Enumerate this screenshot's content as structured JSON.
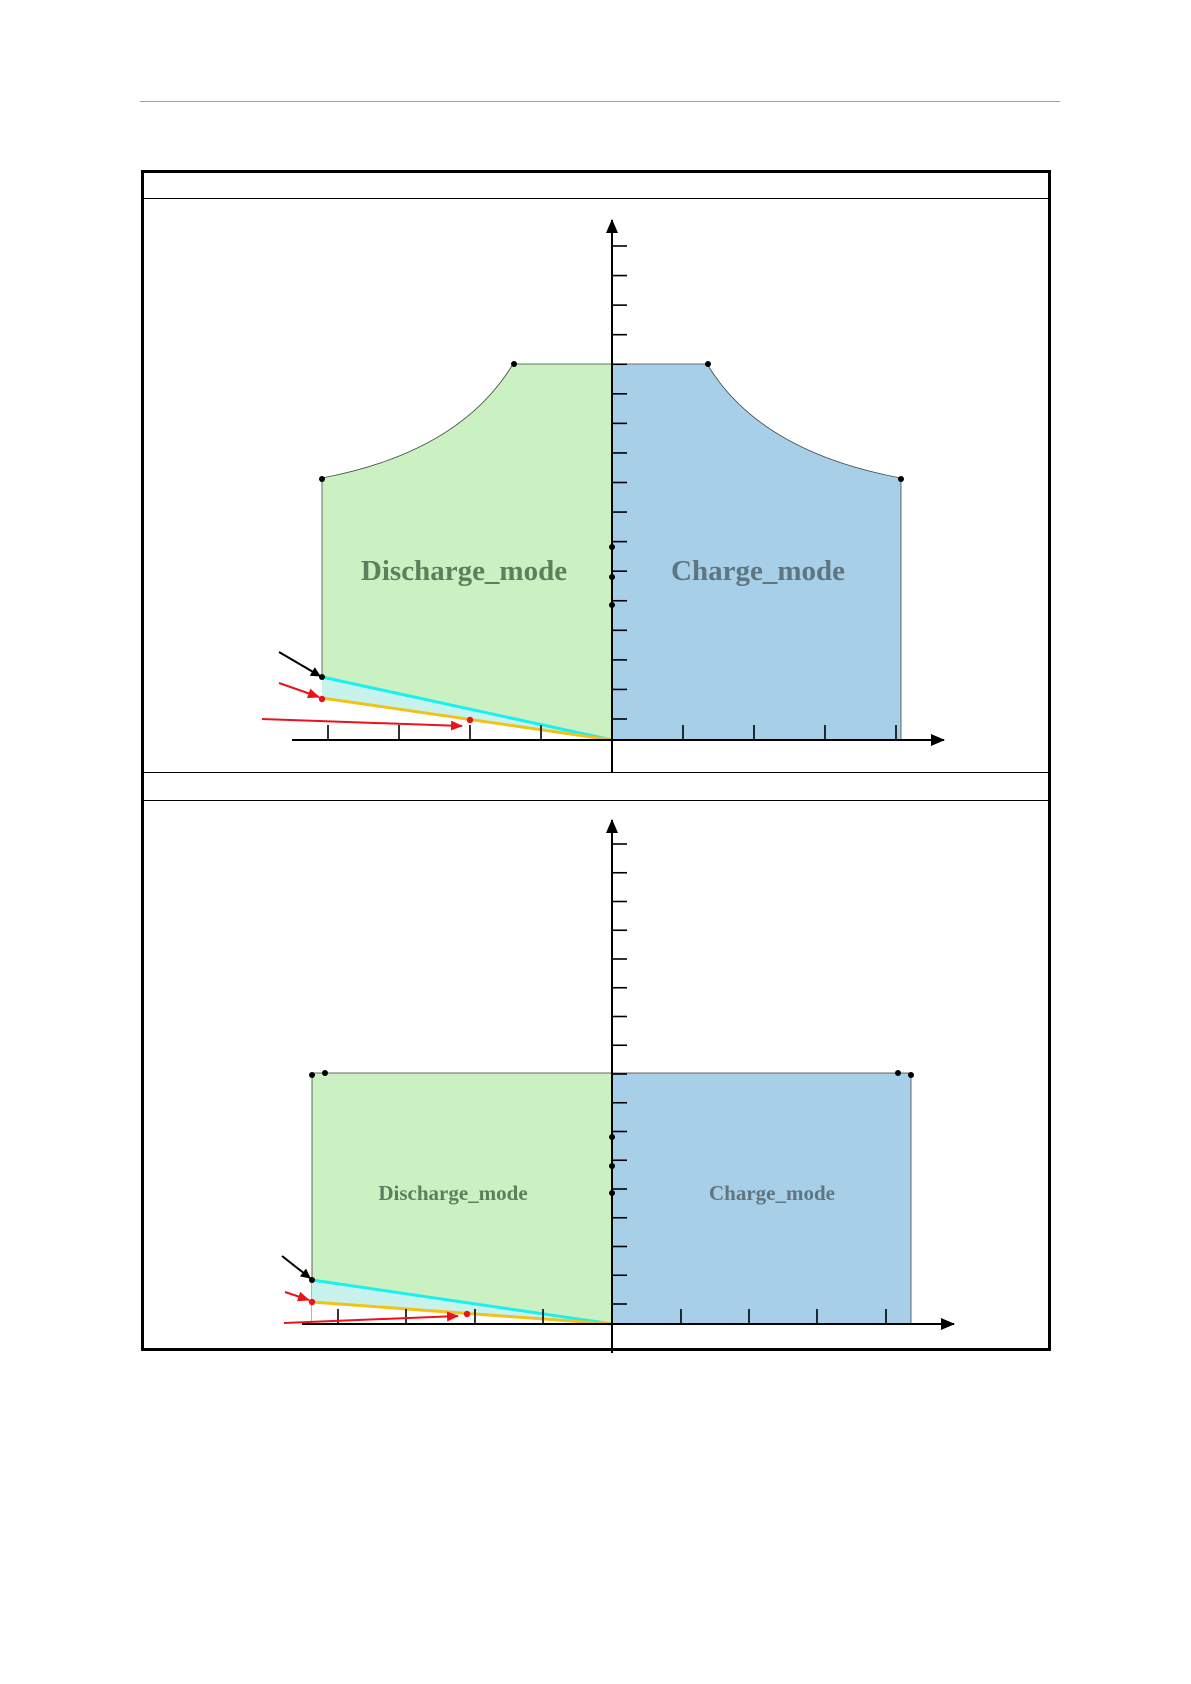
{
  "document": {
    "header_rule_color": "#5fb6d2",
    "frame_color": "#000000"
  },
  "colors": {
    "discharge_fill": "#cbf1c3",
    "charge_fill": "#a7d0e8",
    "label_discharge": "#5e7f5e",
    "label_charge": "#5f7580",
    "cyan_line": "#19f0f0",
    "yellow_line": "#f2c21a",
    "red_arrow": "#e8141b",
    "black_arrow": "#000000"
  },
  "diagrams": [
    {
      "id": "upper-operating-range",
      "shape": "constant-power curved shoulders",
      "regions": [
        {
          "name": "discharge",
          "label": "Discharge_mode"
        },
        {
          "name": "charge",
          "label": "Charge_mode"
        }
      ],
      "x_ticks_left": 4,
      "x_ticks_right": 4,
      "y_ticks": 17,
      "axis_dots": 3
    },
    {
      "id": "lower-operating-range",
      "shape": "rectangular limits",
      "regions": [
        {
          "name": "discharge",
          "label": "Discharge_mode"
        },
        {
          "name": "charge",
          "label": "Charge_mode"
        }
      ],
      "x_ticks_left": 4,
      "x_ticks_right": 4,
      "y_ticks": 17,
      "axis_dots": 3
    }
  ]
}
